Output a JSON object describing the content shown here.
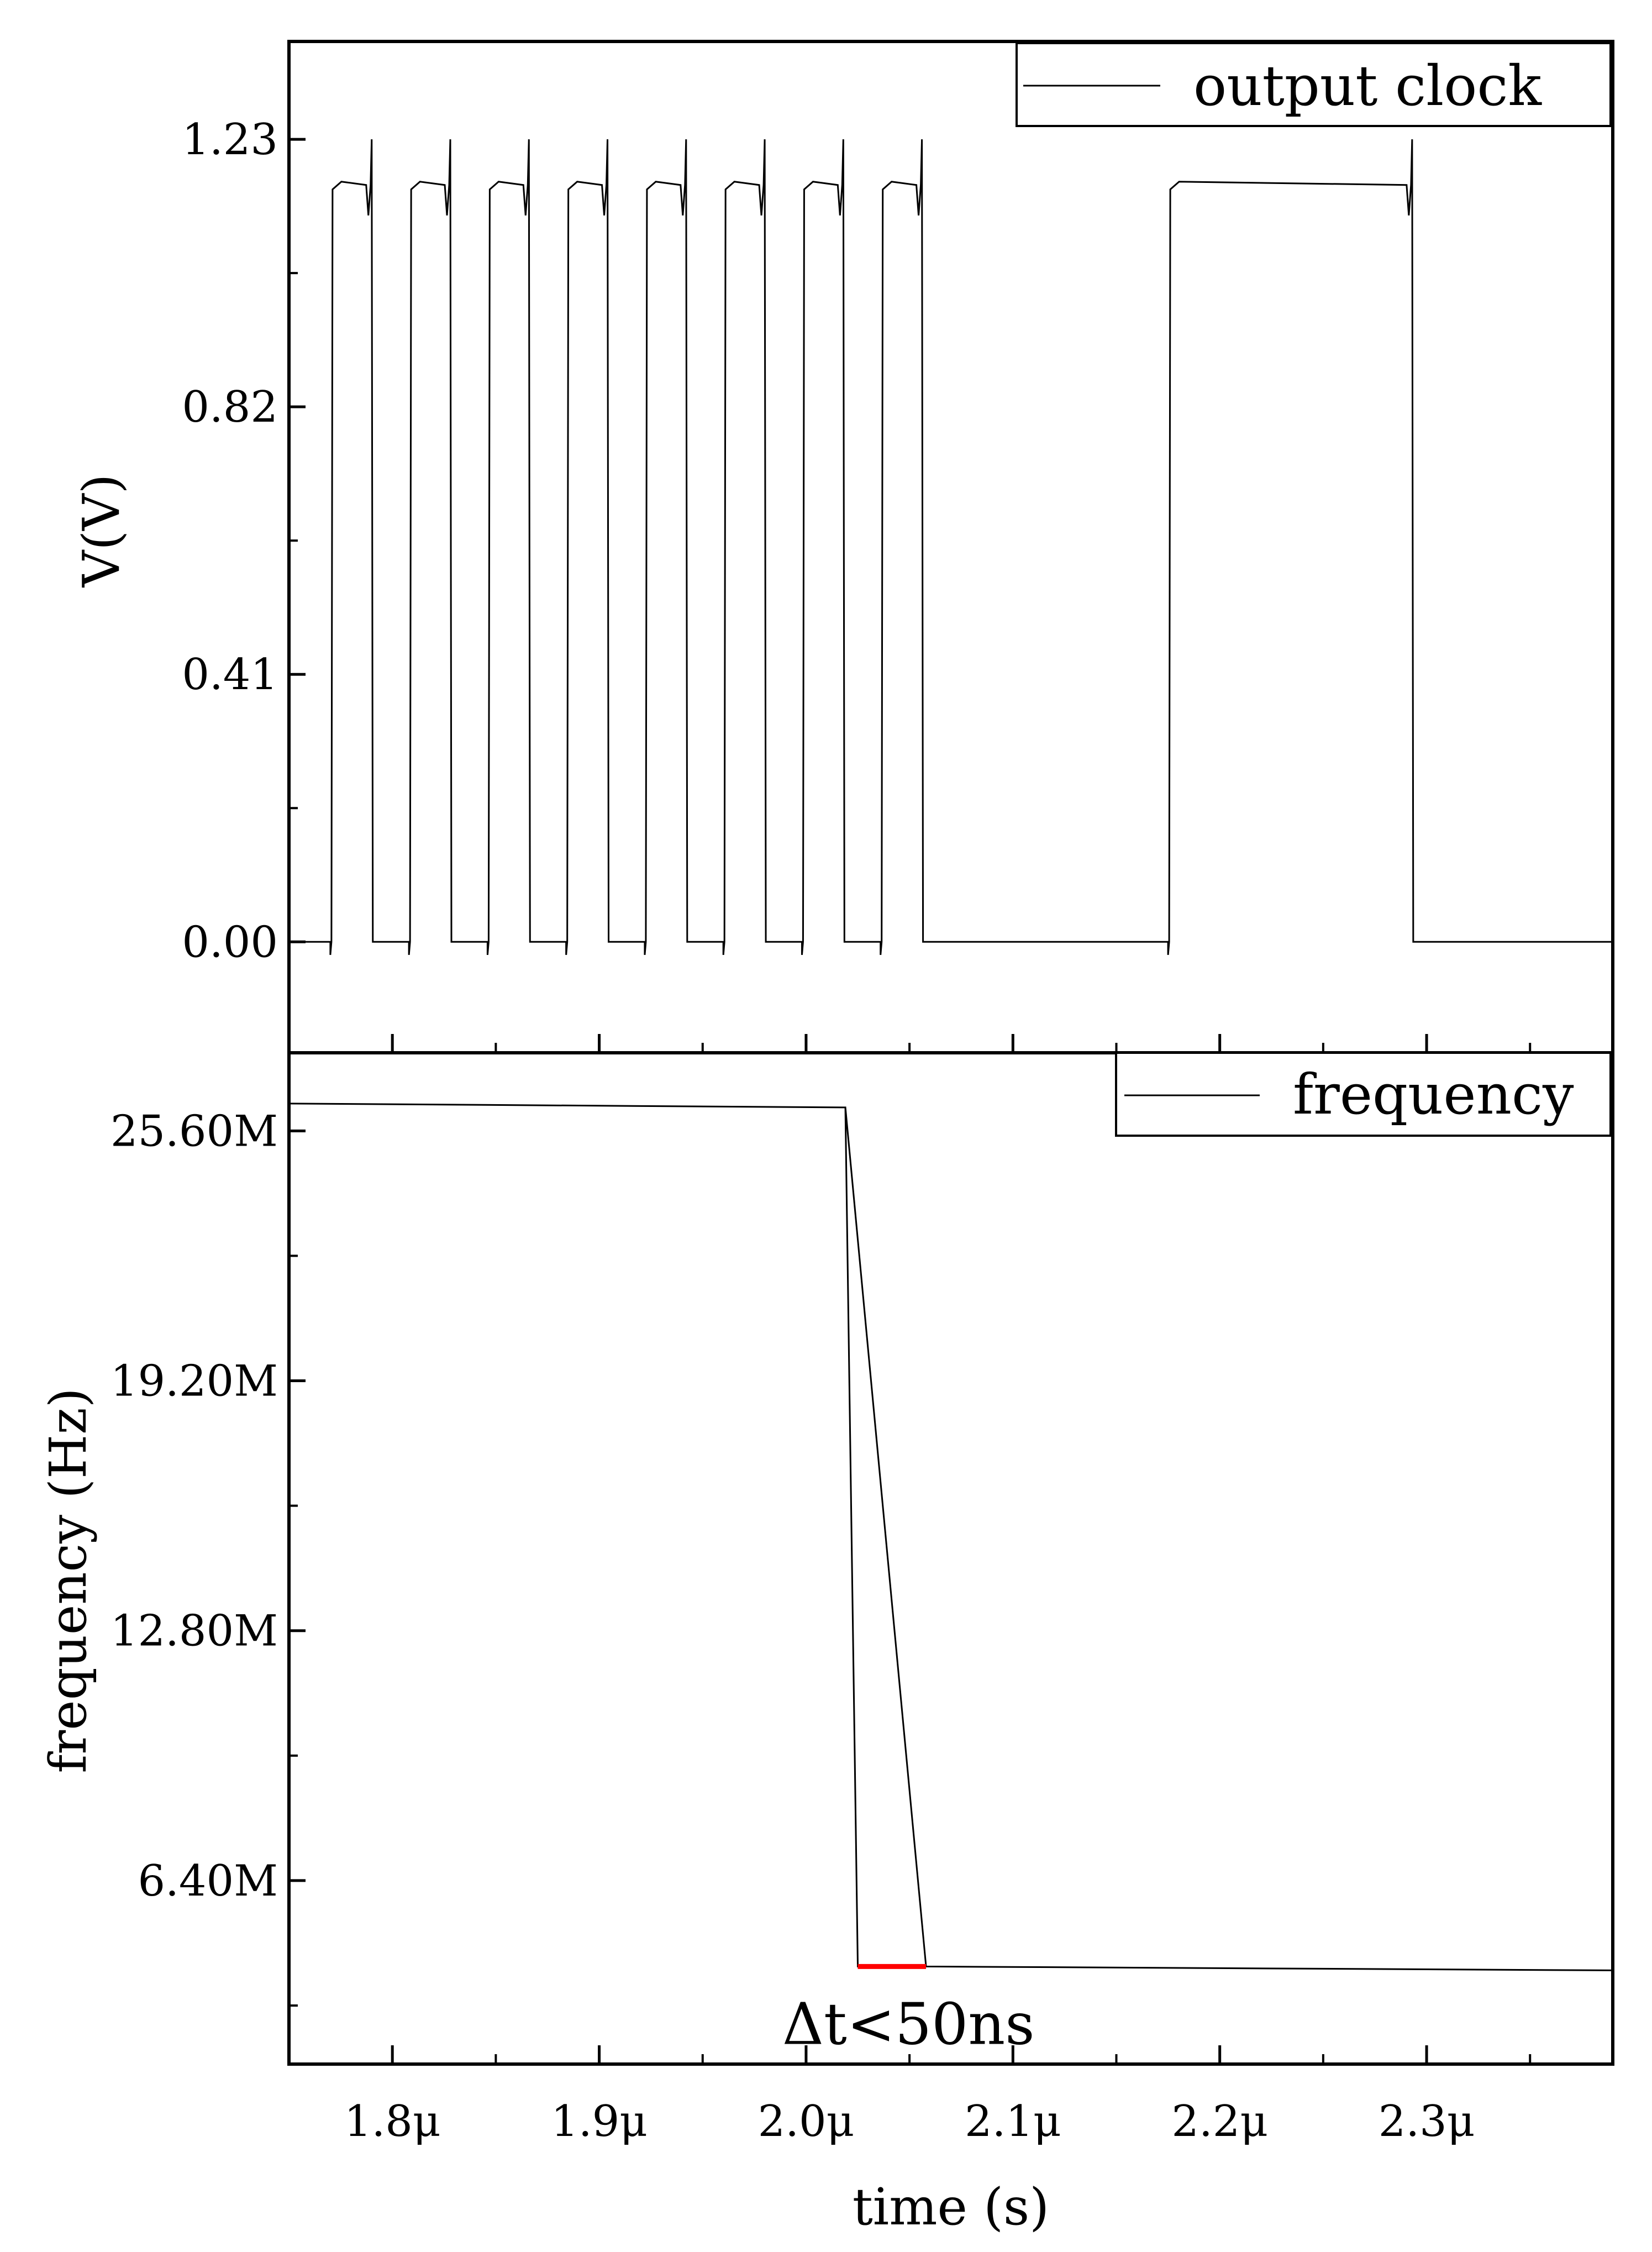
{
  "chart_data": [
    {
      "type": "line",
      "panel": "top",
      "title": "",
      "xlabel": "",
      "ylabel": "V(V)",
      "xlim": [
        1.75,
        2.39
      ],
      "ylim": [
        -0.17,
        1.38
      ],
      "grid": false,
      "legend_position": "top-right",
      "y_ticks": [
        {
          "value": 0.0,
          "label": "0.00"
        },
        {
          "value": 0.41,
          "label": "0.41"
        },
        {
          "value": 0.82,
          "label": "0.82"
        },
        {
          "value": 1.23,
          "label": "1.23"
        }
      ],
      "series": [
        {
          "name": "output clock",
          "color": "#000000",
          "high_level": 1.16,
          "low_level": 0.0,
          "high_intervals": [
            [
              1.77,
              1.79
            ],
            [
              1.808,
              1.828
            ],
            [
              1.846,
              1.866
            ],
            [
              1.884,
              1.904
            ],
            [
              1.922,
              1.942
            ],
            [
              1.96,
              1.98
            ],
            [
              1.998,
              2.018
            ],
            [
              2.036,
              2.056
            ],
            [
              2.175,
              2.293
            ]
          ]
        }
      ]
    },
    {
      "type": "line",
      "panel": "bottom",
      "title": "",
      "xlabel": "time (s)",
      "ylabel": "frequency (Hz)",
      "xlim": [
        1.75,
        2.39
      ],
      "ylim": [
        1.7,
        27.6
      ],
      "grid": false,
      "legend_position": "top-right",
      "x_ticks": [
        {
          "value": 1.8,
          "label": "1.8μ"
        },
        {
          "value": 1.9,
          "label": "1.9μ"
        },
        {
          "value": 2.0,
          "label": "2.0μ"
        },
        {
          "value": 2.1,
          "label": "2.1μ"
        },
        {
          "value": 2.2,
          "label": "2.2μ"
        },
        {
          "value": 2.3,
          "label": "2.3μ"
        }
      ],
      "y_ticks": [
        {
          "value": 6.4,
          "label": "6.40M"
        },
        {
          "value": 12.8,
          "label": "12.80M"
        },
        {
          "value": 19.2,
          "label": "19.20M"
        },
        {
          "value": 25.6,
          "label": "25.60M"
        }
      ],
      "series": [
        {
          "name": "frequency",
          "color": "#000000",
          "x": [
            1.75,
            2.019,
            2.025,
            2.025,
            2.058,
            2.019,
            2.058,
            2.39
          ],
          "y": [
            26.3,
            26.2,
            4.2,
            4.2,
            4.2,
            26.2,
            4.2,
            4.1
          ]
        }
      ],
      "annotations": [
        {
          "text": "Δt<50ns",
          "marker_color": "#ff0000",
          "x_range": [
            2.025,
            2.058
          ],
          "y": 4.2
        }
      ]
    }
  ]
}
